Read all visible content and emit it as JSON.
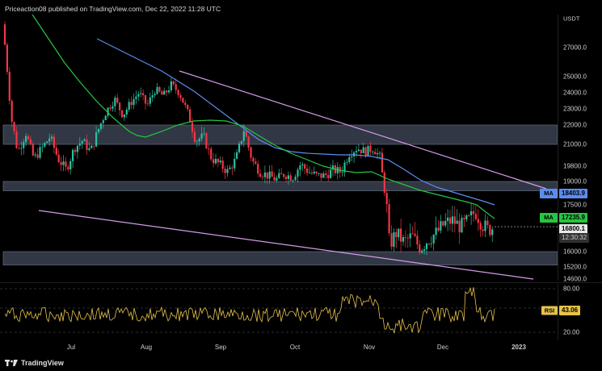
{
  "header": {
    "publisher": "Priceaction08 published on TradingView.com, Dec 22, 2022 11:28 UTC"
  },
  "price_axis": {
    "unit": "USDT",
    "ticks": [
      "27000.0",
      "25000.0",
      "24000.0",
      "23000.0",
      "22000.0",
      "21000.0",
      "19800.0",
      "19000.0",
      "17500.0",
      "16000.0",
      "15200.0",
      "14600.0"
    ]
  },
  "badges": {
    "ma_blue": {
      "tag": "MA",
      "value": "18403.9",
      "color": "#5b8def"
    },
    "ma_green": {
      "tag": "MA",
      "value": "17235.9",
      "color": "#26c542"
    },
    "price": {
      "value": "16800.1",
      "countdown": "12:30:32",
      "color": "#e8e8e8"
    }
  },
  "rsi": {
    "tag": "RSI",
    "value": "43.06",
    "ticks": [
      "80.00",
      "20.00"
    ]
  },
  "time_axis": {
    "labels": [
      "Jul",
      "Aug",
      "Sep",
      "Oct",
      "Nov",
      "Dec",
      "2023"
    ]
  },
  "footer": {
    "brand": "TradingView"
  },
  "colors": {
    "zone": "#3a4150",
    "zone_border": "#6f7686",
    "trendline": "#d39be8",
    "ma_blue": "#5b8def",
    "ma_green": "#26c542",
    "rsi_line": "#e6c34a",
    "candle_up": "#2bbfa0",
    "candle_down": "#f23645"
  },
  "chart_data": {
    "type": "candlestick",
    "symbol_quote": "USDT",
    "indicators": [
      "MA",
      "MA",
      "RSI"
    ],
    "support_resistance_zones": [
      [
        21000,
        22000
      ],
      [
        18400,
        19000
      ],
      [
        15300,
        16000
      ]
    ],
    "last_price": 16800.1,
    "ma_values": [
      18403.9,
      17235.9
    ],
    "rsi_value": 43.06,
    "close_path": [
      [
        0,
        28600
      ],
      [
        6,
        27200
      ],
      [
        14,
        22400
      ],
      [
        22,
        20600
      ],
      [
        32,
        21600
      ],
      [
        42,
        20200
      ],
      [
        52,
        20800
      ],
      [
        62,
        21400
      ],
      [
        72,
        20200
      ],
      [
        82,
        19600
      ],
      [
        92,
        20800
      ],
      [
        102,
        21200
      ],
      [
        112,
        20600
      ],
      [
        122,
        21800
      ],
      [
        132,
        22900
      ],
      [
        142,
        23600
      ],
      [
        152,
        22600
      ],
      [
        162,
        23400
      ],
      [
        172,
        24000
      ],
      [
        182,
        23200
      ],
      [
        192,
        24200
      ],
      [
        202,
        23800
      ],
      [
        212,
        24500
      ],
      [
        222,
        24000
      ],
      [
        232,
        22800
      ],
      [
        242,
        21200
      ],
      [
        252,
        21400
      ],
      [
        262,
        20200
      ],
      [
        272,
        19900
      ],
      [
        282,
        19500
      ],
      [
        292,
        20200
      ],
      [
        302,
        21800
      ],
      [
        312,
        20100
      ],
      [
        322,
        19500
      ],
      [
        332,
        19300
      ],
      [
        342,
        19100
      ],
      [
        352,
        19400
      ],
      [
        362,
        19200
      ],
      [
        372,
        19900
      ],
      [
        382,
        19500
      ],
      [
        392,
        19300
      ],
      [
        402,
        19300
      ],
      [
        412,
        19600
      ],
      [
        422,
        19500
      ],
      [
        432,
        20500
      ],
      [
        442,
        20800
      ],
      [
        452,
        20600
      ],
      [
        462,
        20800
      ],
      [
        470,
        20300
      ],
      [
        476,
        18400
      ],
      [
        482,
        16200
      ],
      [
        490,
        16600
      ],
      [
        500,
        16300
      ],
      [
        510,
        16500
      ],
      [
        520,
        16100
      ],
      [
        530,
        16400
      ],
      [
        540,
        16600
      ],
      [
        550,
        16900
      ],
      [
        560,
        17000
      ],
      [
        570,
        16800
      ],
      [
        580,
        17000
      ],
      [
        588,
        17300
      ],
      [
        596,
        16900
      ],
      [
        604,
        16700
      ],
      [
        612,
        16800
      ]
    ]
  }
}
